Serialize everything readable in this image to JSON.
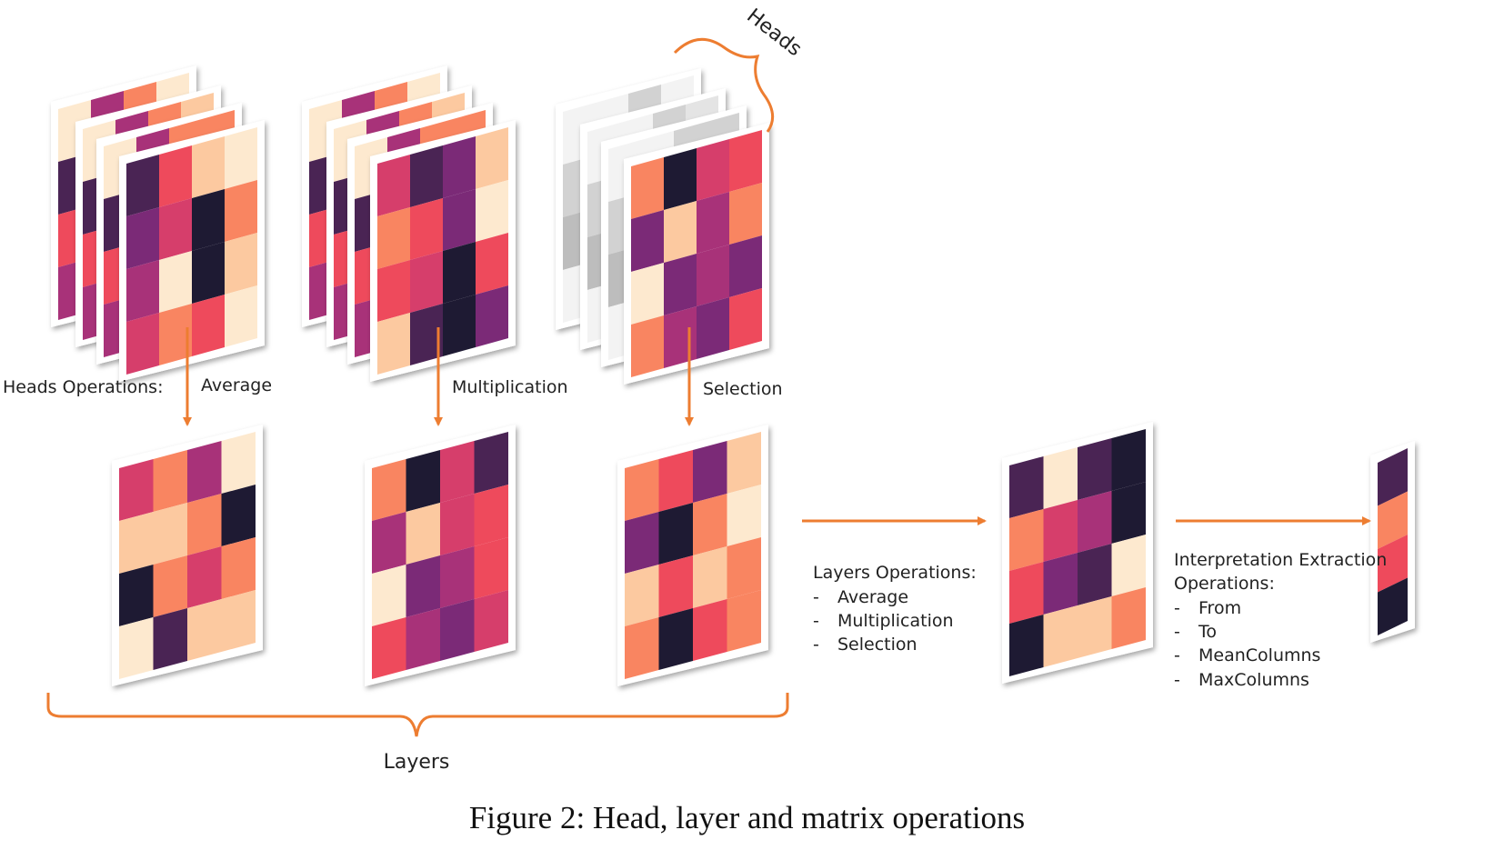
{
  "caption": "Figure 2: Head, layer and matrix operations",
  "labels": {
    "heads_operations": "Heads Operations:",
    "average": "Average",
    "multiplication": "Multiplication",
    "selection": "Selection",
    "heads": "Heads",
    "layers": "Layers"
  },
  "layers_operations": {
    "title": "Layers Operations:",
    "items": [
      "Average",
      "Multiplication",
      "Selection"
    ]
  },
  "interpretation_operations": {
    "title_line1": "Interpretation Extraction",
    "title_line2": "Operations:",
    "items": [
      "From",
      "To",
      "MeanColumns",
      "MaxColumns"
    ]
  },
  "colors": {
    "accent": "#ED7D31",
    "palette": [
      "#FDE9CF",
      "#FCC9A0",
      "#F98561",
      "#EE4A5C",
      "#D63E6B",
      "#A83279",
      "#7B2A77",
      "#4A2454",
      "#1E1A33"
    ],
    "grey_palette": [
      "#F3F3F3",
      "#E4E4E4",
      "#D2D2D2",
      "#BDBDBD",
      "#A8A8A8"
    ]
  },
  "matrices": {
    "stack_average": [
      [
        7,
        3,
        1,
        0
      ],
      [
        6,
        4,
        8,
        2
      ],
      [
        5,
        0,
        8,
        1
      ],
      [
        4,
        2,
        3,
        0
      ]
    ],
    "stack_multiplication": [
      [
        4,
        7,
        6,
        1
      ],
      [
        2,
        3,
        6,
        0
      ],
      [
        3,
        4,
        8,
        3
      ],
      [
        1,
        7,
        8,
        6
      ]
    ],
    "stack_selection": [
      [
        2,
        8,
        4,
        3
      ],
      [
        6,
        1,
        5,
        2
      ],
      [
        0,
        6,
        5,
        6
      ],
      [
        2,
        5,
        6,
        3
      ]
    ],
    "layer_average": [
      [
        4,
        2,
        5,
        0
      ],
      [
        1,
        1,
        2,
        8
      ],
      [
        8,
        2,
        4,
        2
      ],
      [
        0,
        7,
        1,
        1
      ]
    ],
    "layer_multiplication": [
      [
        2,
        8,
        4,
        7
      ],
      [
        5,
        1,
        4,
        3
      ],
      [
        0,
        6,
        5,
        3
      ],
      [
        3,
        5,
        6,
        4
      ]
    ],
    "layer_selection": [
      [
        2,
        3,
        6,
        1
      ],
      [
        6,
        8,
        2,
        0
      ],
      [
        1,
        3,
        1,
        2
      ],
      [
        2,
        8,
        3,
        2
      ]
    ],
    "result_layer": [
      [
        7,
        0,
        7,
        8
      ],
      [
        2,
        4,
        5,
        8
      ],
      [
        3,
        6,
        7,
        0
      ],
      [
        8,
        1,
        1,
        2
      ]
    ],
    "result_column": [
      7,
      2,
      3,
      8
    ]
  }
}
